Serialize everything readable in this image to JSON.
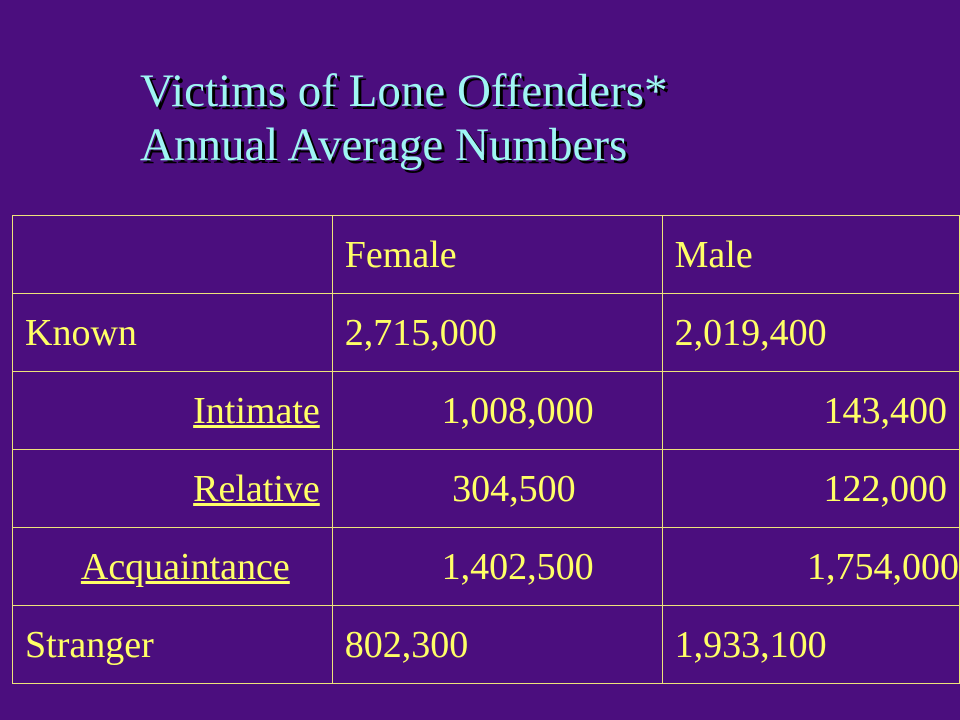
{
  "title": {
    "line1": "Victims of Lone Offenders*",
    "line2": "Annual Average Numbers"
  },
  "table": {
    "headers": [
      "",
      "Female",
      "Male"
    ],
    "rows": [
      {
        "category": "Known",
        "female": "2,715,000",
        "male": "2,019,400",
        "indented": false
      },
      {
        "category": "Intimate",
        "female": "1,008,000",
        "male": "143,400",
        "indented": true
      },
      {
        "category": "Relative",
        "female": "304,500",
        "male": "122,000",
        "indented": true
      },
      {
        "category": "Acquaintance",
        "female": "1,402,500",
        "male": "1,754,000",
        "indented": true
      },
      {
        "category": "Stranger",
        "female": "802,300",
        "male": "1,933,100",
        "indented": false
      }
    ]
  },
  "colors": {
    "background": "#4b0e7e",
    "title": "#9ff5f3",
    "table_text": "#ffff66",
    "table_border": "#eee37a"
  }
}
